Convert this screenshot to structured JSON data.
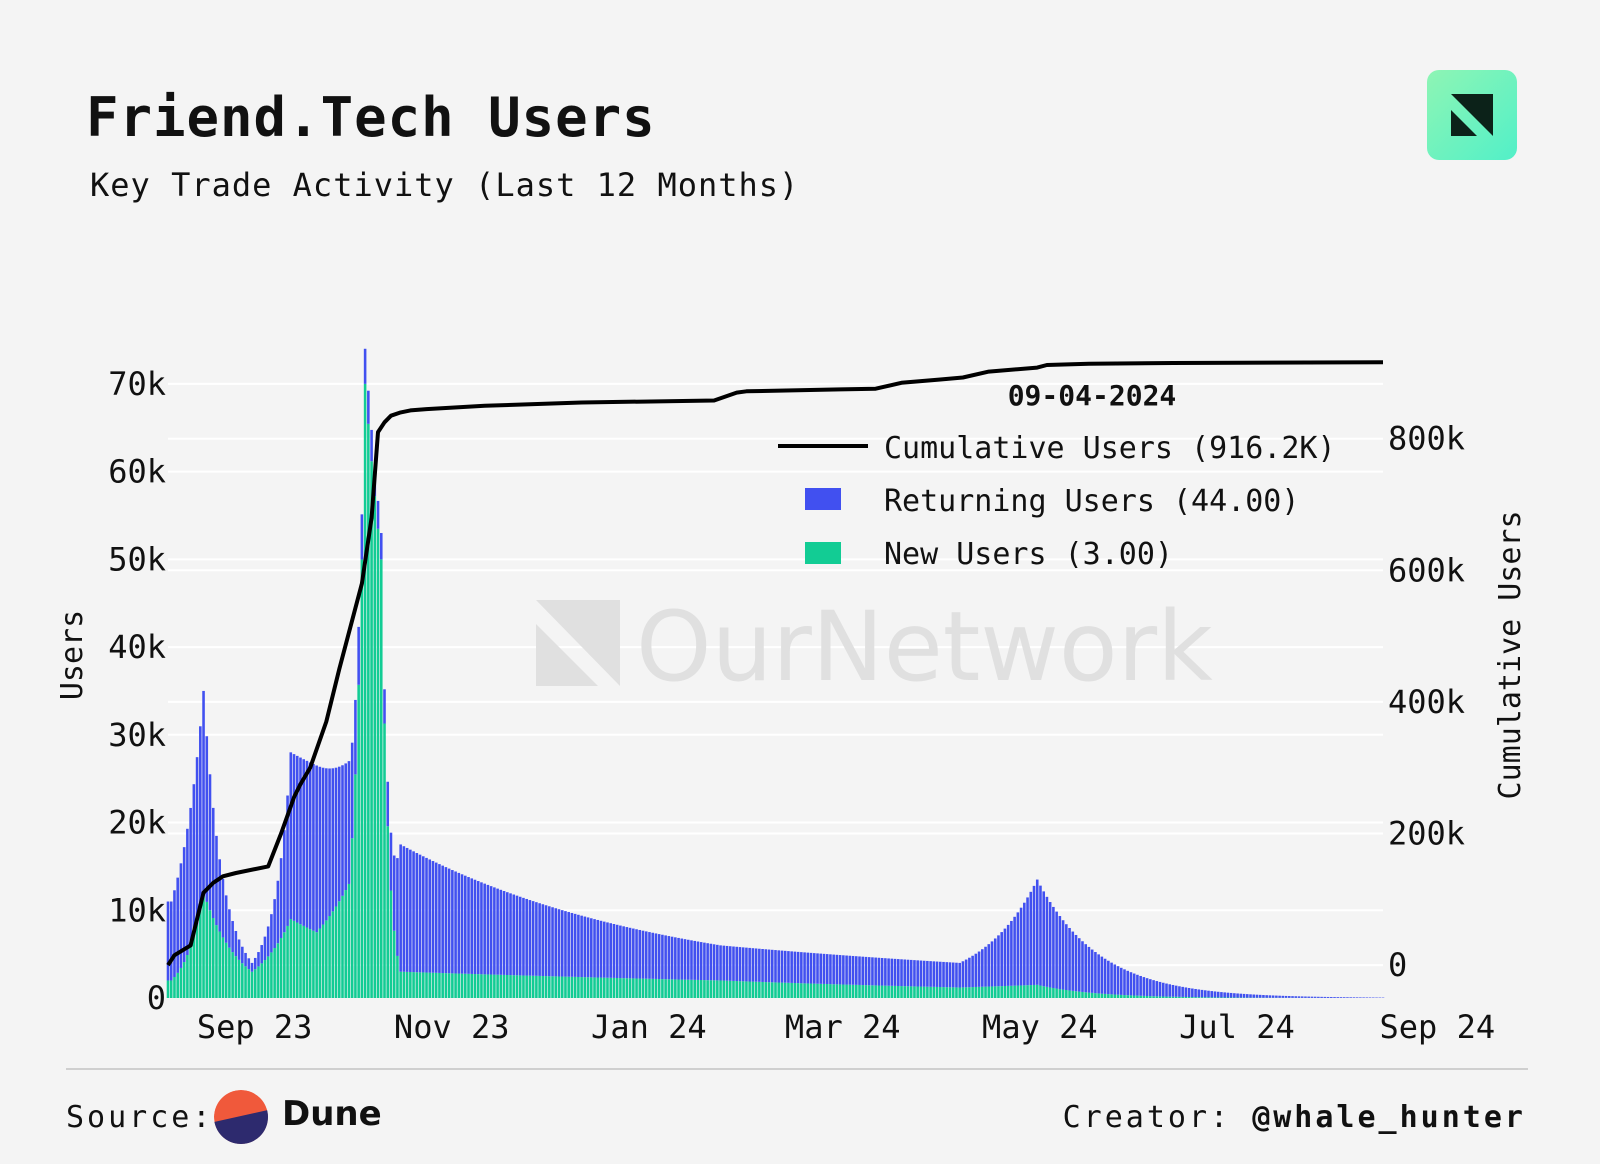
{
  "header": {
    "title": "Friend.Tech Users",
    "subtitle": "Key Trade Activity (Last 12 Months)"
  },
  "watermark": {
    "text": "OurNetwork"
  },
  "legend": {
    "date": "09-04-2024",
    "items": [
      {
        "label": "Cumulative Users (916.2K)",
        "kind": "line",
        "color": "#000000"
      },
      {
        "label": "Returning Users (44.00)",
        "kind": "bar",
        "color": "#4150f0"
      },
      {
        "label": "New Users (3.00)",
        "kind": "bar",
        "color": "#12cc94"
      }
    ]
  },
  "footer": {
    "source_label": "Source:",
    "source_name": "Dune",
    "creator_label": "Creator:",
    "creator_handle": "@whale_hunter"
  },
  "colors": {
    "returning": "#4150f0",
    "new": "#12cc94",
    "cumulative": "#000000",
    "grid": "#ffffff",
    "background": "#f4f4f4"
  },
  "chart_data": {
    "type": "bar",
    "stacked": true,
    "title": "Friend.Tech Users",
    "subtitle": "Key Trade Activity (Last 12 Months)",
    "ylabel": "Users",
    "y2label": "Cumulative Users",
    "ylim": [
      0,
      75000
    ],
    "y_ticks": [
      0,
      10000,
      20000,
      30000,
      40000,
      50000,
      60000,
      70000
    ],
    "y_tick_labels": [
      "0",
      "10k",
      "20k",
      "30k",
      "40k",
      "50k",
      "60k",
      "70k"
    ],
    "y2lim": [
      -50000,
      950000
    ],
    "y2_ticks": [
      0,
      200000,
      400000,
      600000,
      800000
    ],
    "y2_tick_labels": [
      "0",
      "200k",
      "400k",
      "600k",
      "800k"
    ],
    "xlim": [
      "2023-08-25",
      "2024-09-04"
    ],
    "x_ticks": [
      "2023-09-01",
      "2023-11-01",
      "2024-01-01",
      "2024-03-01",
      "2024-05-01",
      "2024-07-01",
      "2024-09-01"
    ],
    "x_tick_labels": [
      "Sep 23",
      "Nov 23",
      "Jan 24",
      "Mar 24",
      "May 24",
      "Jul 24",
      "Sep 24"
    ],
    "grid": true,
    "legend_position": "top-right",
    "bar_series_peaks": [
      {
        "date": "2023-08-26",
        "new": 2000,
        "returning": 9000
      },
      {
        "date": "2023-09-05",
        "new": 12000,
        "returning": 23000
      },
      {
        "date": "2023-09-07",
        "new": 10000,
        "returning": 15500
      },
      {
        "date": "2023-09-20",
        "new": 3000,
        "returning": 1000
      },
      {
        "date": "2023-10-02",
        "new": 9000,
        "returning": 19000
      },
      {
        "date": "2023-10-10",
        "new": 7500,
        "returning": 19000
      },
      {
        "date": "2023-10-20",
        "new": 13000,
        "returning": 14000
      },
      {
        "date": "2023-10-25",
        "new": 70000,
        "returning": 4000
      },
      {
        "date": "2023-10-30",
        "new": 50000,
        "returning": 3000
      },
      {
        "date": "2023-11-05",
        "new": 3000,
        "returning": 14500
      },
      {
        "date": "2024-02-12",
        "new": 2000,
        "returning": 4000
      },
      {
        "date": "2024-04-26",
        "new": 1200,
        "returning": 2800
      },
      {
        "date": "2024-05-20",
        "new": 1500,
        "returning": 12000
      },
      {
        "date": "2024-09-04",
        "new": 3,
        "returning": 44
      }
    ],
    "series": [
      {
        "name": "Cumulative Users",
        "kind": "line",
        "axis": "right",
        "x": [
          "2023-08-25",
          "2023-08-27",
          "2023-09-01",
          "2023-09-05",
          "2023-09-08",
          "2023-09-11",
          "2023-09-15",
          "2023-09-25",
          "2023-09-29",
          "2023-10-03",
          "2023-10-05",
          "2023-10-08",
          "2023-10-13",
          "2023-10-17",
          "2023-10-24",
          "2023-10-27",
          "2023-10-29",
          "2023-10-31",
          "2023-11-02",
          "2023-11-05",
          "2023-11-08",
          "2023-11-13",
          "2023-12-01",
          "2023-12-31",
          "2024-02-10",
          "2024-02-17",
          "2024-02-20",
          "2024-03-20",
          "2024-03-31",
          "2024-04-08",
          "2024-04-20",
          "2024-04-27",
          "2024-05-05",
          "2024-05-20",
          "2024-05-23",
          "2024-06-05",
          "2024-07-01",
          "2024-09-04"
        ],
        "values": [
          0,
          15000,
          30000,
          110000,
          125000,
          135000,
          140000,
          150000,
          200000,
          255000,
          275000,
          300000,
          370000,
          450000,
          580000,
          680000,
          810000,
          825000,
          835000,
          840000,
          843000,
          845000,
          850000,
          855000,
          858000,
          870000,
          872000,
          875000,
          876000,
          885000,
          890000,
          893000,
          902000,
          908000,
          912000,
          914000,
          915000,
          916200
        ]
      }
    ]
  }
}
